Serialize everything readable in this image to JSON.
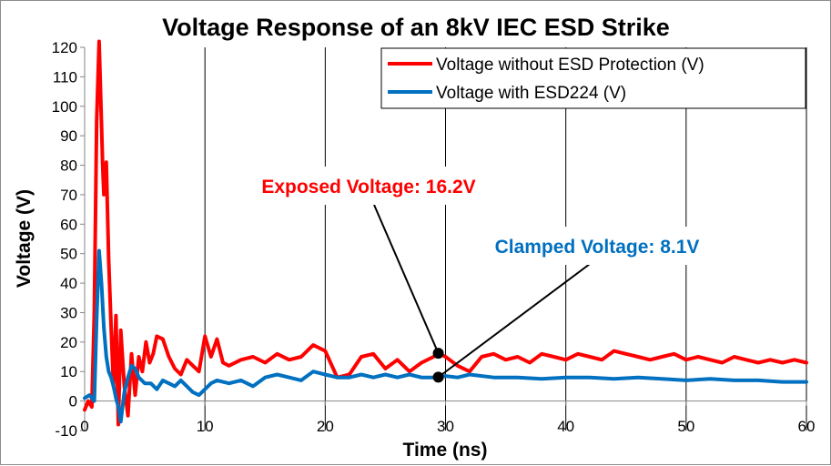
{
  "chart_data": {
    "type": "line",
    "title": "Voltage Response of an 8kV IEC ESD Strike",
    "xlabel": "Time (ns)",
    "ylabel": "Voltage (V)",
    "xlim": [
      0,
      60
    ],
    "ylim": [
      -10,
      120
    ],
    "x_ticks": [
      0,
      10,
      20,
      30,
      40,
      50,
      60
    ],
    "y_ticks": [
      -10,
      0,
      10,
      20,
      30,
      40,
      50,
      60,
      70,
      80,
      90,
      100,
      110,
      120
    ],
    "grid": "vertical",
    "legend_position": "top-right",
    "series": [
      {
        "name": "Voltage without ESD Protection (V)",
        "color": "#ff0000",
        "x": [
          0,
          0.3,
          0.6,
          0.8,
          1.0,
          1.2,
          1.5,
          1.6,
          1.8,
          2.0,
          2.2,
          2.4,
          2.6,
          2.8,
          3.0,
          3.3,
          3.6,
          3.9,
          4.2,
          4.5,
          4.8,
          5.1,
          5.4,
          5.7,
          6.0,
          6.5,
          7.0,
          7.5,
          8.0,
          8.5,
          9.0,
          9.5,
          10.0,
          10.5,
          11.0,
          11.5,
          12.0,
          13.0,
          14.0,
          15.0,
          16.0,
          17.0,
          18.0,
          19.0,
          20.0,
          21.0,
          22.0,
          23.0,
          24.0,
          25.0,
          26.0,
          27.0,
          28.0,
          29.0,
          29.4,
          30.0,
          31.0,
          32.0,
          33.0,
          34.0,
          35.0,
          36.0,
          37.0,
          38.0,
          39.0,
          40.0,
          41.0,
          42.0,
          43.0,
          44.0,
          45.0,
          46.0,
          47.0,
          48.0,
          49.0,
          50.0,
          51.0,
          52.0,
          53.0,
          54.0,
          55.0,
          56.0,
          57.0,
          58.0,
          59.0,
          60.0
        ],
        "y": [
          -3,
          0,
          -2,
          30,
          95,
          122,
          80,
          70,
          81,
          48,
          25,
          5,
          29,
          -8,
          24,
          5,
          -5,
          16,
          2,
          15,
          10,
          20,
          13,
          16,
          22,
          21,
          15,
          11,
          9,
          14,
          12,
          10,
          22,
          15,
          21,
          13,
          12,
          14,
          15,
          13,
          16,
          14,
          15,
          19,
          17,
          8,
          9,
          15,
          16,
          11,
          14,
          10,
          13,
          15,
          16.2,
          15,
          12,
          10,
          15,
          16,
          14,
          15,
          13,
          16,
          15,
          14,
          16,
          15,
          14,
          17,
          16,
          15,
          14,
          15,
          16,
          14,
          15,
          14,
          13,
          15,
          14,
          13,
          14,
          13,
          14,
          13
        ]
      },
      {
        "name": "Voltage with ESD224 (V)",
        "color": "#0070c0",
        "x": [
          0,
          0.4,
          0.8,
          1.0,
          1.2,
          1.4,
          1.6,
          1.8,
          2.0,
          2.2,
          2.4,
          2.6,
          2.8,
          3.0,
          3.3,
          3.6,
          3.9,
          4.2,
          4.5,
          5.0,
          5.5,
          6.0,
          6.5,
          7.0,
          7.5,
          8.0,
          8.5,
          9.0,
          9.5,
          10.0,
          10.5,
          11.0,
          12.0,
          13.0,
          14.0,
          15.0,
          16.0,
          17.0,
          18.0,
          19.0,
          20.0,
          21.0,
          22.0,
          23.0,
          24.0,
          25.0,
          26.0,
          27.0,
          28.0,
          29.0,
          29.4,
          30.0,
          31.0,
          32.0,
          34.0,
          36.0,
          38.0,
          40.0,
          42.0,
          44.0,
          46.0,
          48.0,
          50.0,
          52.0,
          54.0,
          56.0,
          58.0,
          60.0
        ],
        "y": [
          1,
          2,
          0,
          28,
          51,
          40,
          25,
          15,
          10,
          8,
          5,
          1,
          -2,
          -7,
          3,
          8,
          12,
          11,
          8,
          6,
          6,
          4,
          7,
          6,
          5,
          7,
          5,
          3,
          2,
          4,
          6,
          7,
          6,
          7,
          5,
          8,
          9,
          8,
          7,
          10,
          9,
          8,
          8,
          9,
          8,
          9,
          8,
          9,
          8,
          8,
          8.1,
          8.5,
          8,
          9,
          8,
          8,
          7.5,
          8,
          8,
          7.5,
          8,
          7.5,
          7,
          7.5,
          7,
          7,
          6.5,
          6.5
        ]
      }
    ],
    "annotations": [
      {
        "label": "Exposed Voltage: 16.2V",
        "x": 29.4,
        "y": 16.2,
        "color": "#ff0000",
        "box_anchor_x": 14.5,
        "box_anchor_y": 70
      },
      {
        "label": "Clamped Voltage: 8.1V",
        "x": 29.4,
        "y": 8.1,
        "color": "#0070c0",
        "box_anchor_x": 36,
        "box_anchor_y": 52
      }
    ]
  }
}
